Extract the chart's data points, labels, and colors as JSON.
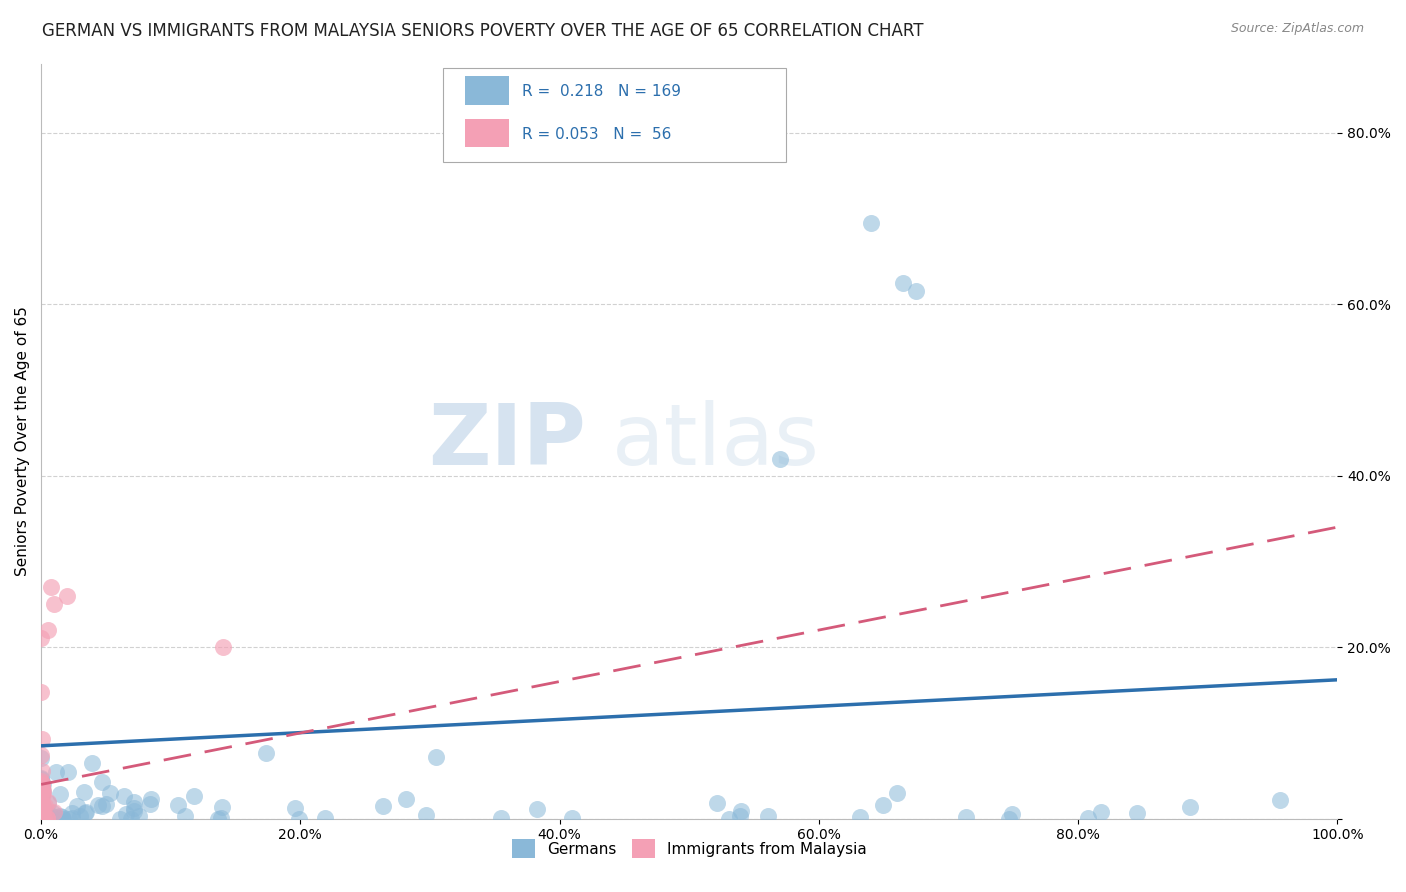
{
  "title": "GERMAN VS IMMIGRANTS FROM MALAYSIA SENIORS POVERTY OVER THE AGE OF 65 CORRELATION CHART",
  "source": "Source: ZipAtlas.com",
  "ylabel": "Seniors Poverty Over the Age of 65",
  "xlim": [
    0.0,
    1.0
  ],
  "ylim": [
    0.0,
    0.88
  ],
  "xtick_vals": [
    0.0,
    0.2,
    0.4,
    0.6,
    0.8,
    1.0
  ],
  "ytick_vals": [
    0.0,
    0.2,
    0.4,
    0.6,
    0.8
  ],
  "ytick_labels": [
    "",
    "20.0%",
    "40.0%",
    "60.0%",
    "80.0%"
  ],
  "xtick_labels": [
    "0.0%",
    "20.0%",
    "40.0%",
    "60.0%",
    "80.0%",
    "100.0%"
  ],
  "german_color": "#8ab8d8",
  "malaysia_color": "#f4a0b5",
  "german_line_color": "#2c6fad",
  "malaysia_line_color": "#d45a7a",
  "R_german": 0.218,
  "N_german": 169,
  "R_malaysia": 0.053,
  "N_malaysia": 56,
  "legend_label_german": "Germans",
  "legend_label_malaysia": "Immigrants from Malaysia",
  "watermark_ZIP": "ZIP",
  "watermark_atlas": "atlas",
  "background_color": "#ffffff",
  "grid_color": "#cccccc",
  "title_fontsize": 12,
  "axis_label_fontsize": 11,
  "tick_fontsize": 10,
  "legend_fontsize": 11,
  "german_trend_start_y": 0.085,
  "german_trend_end_y": 0.162,
  "malaysia_trend_start_y": 0.04,
  "malaysia_trend_end_y": 0.34
}
